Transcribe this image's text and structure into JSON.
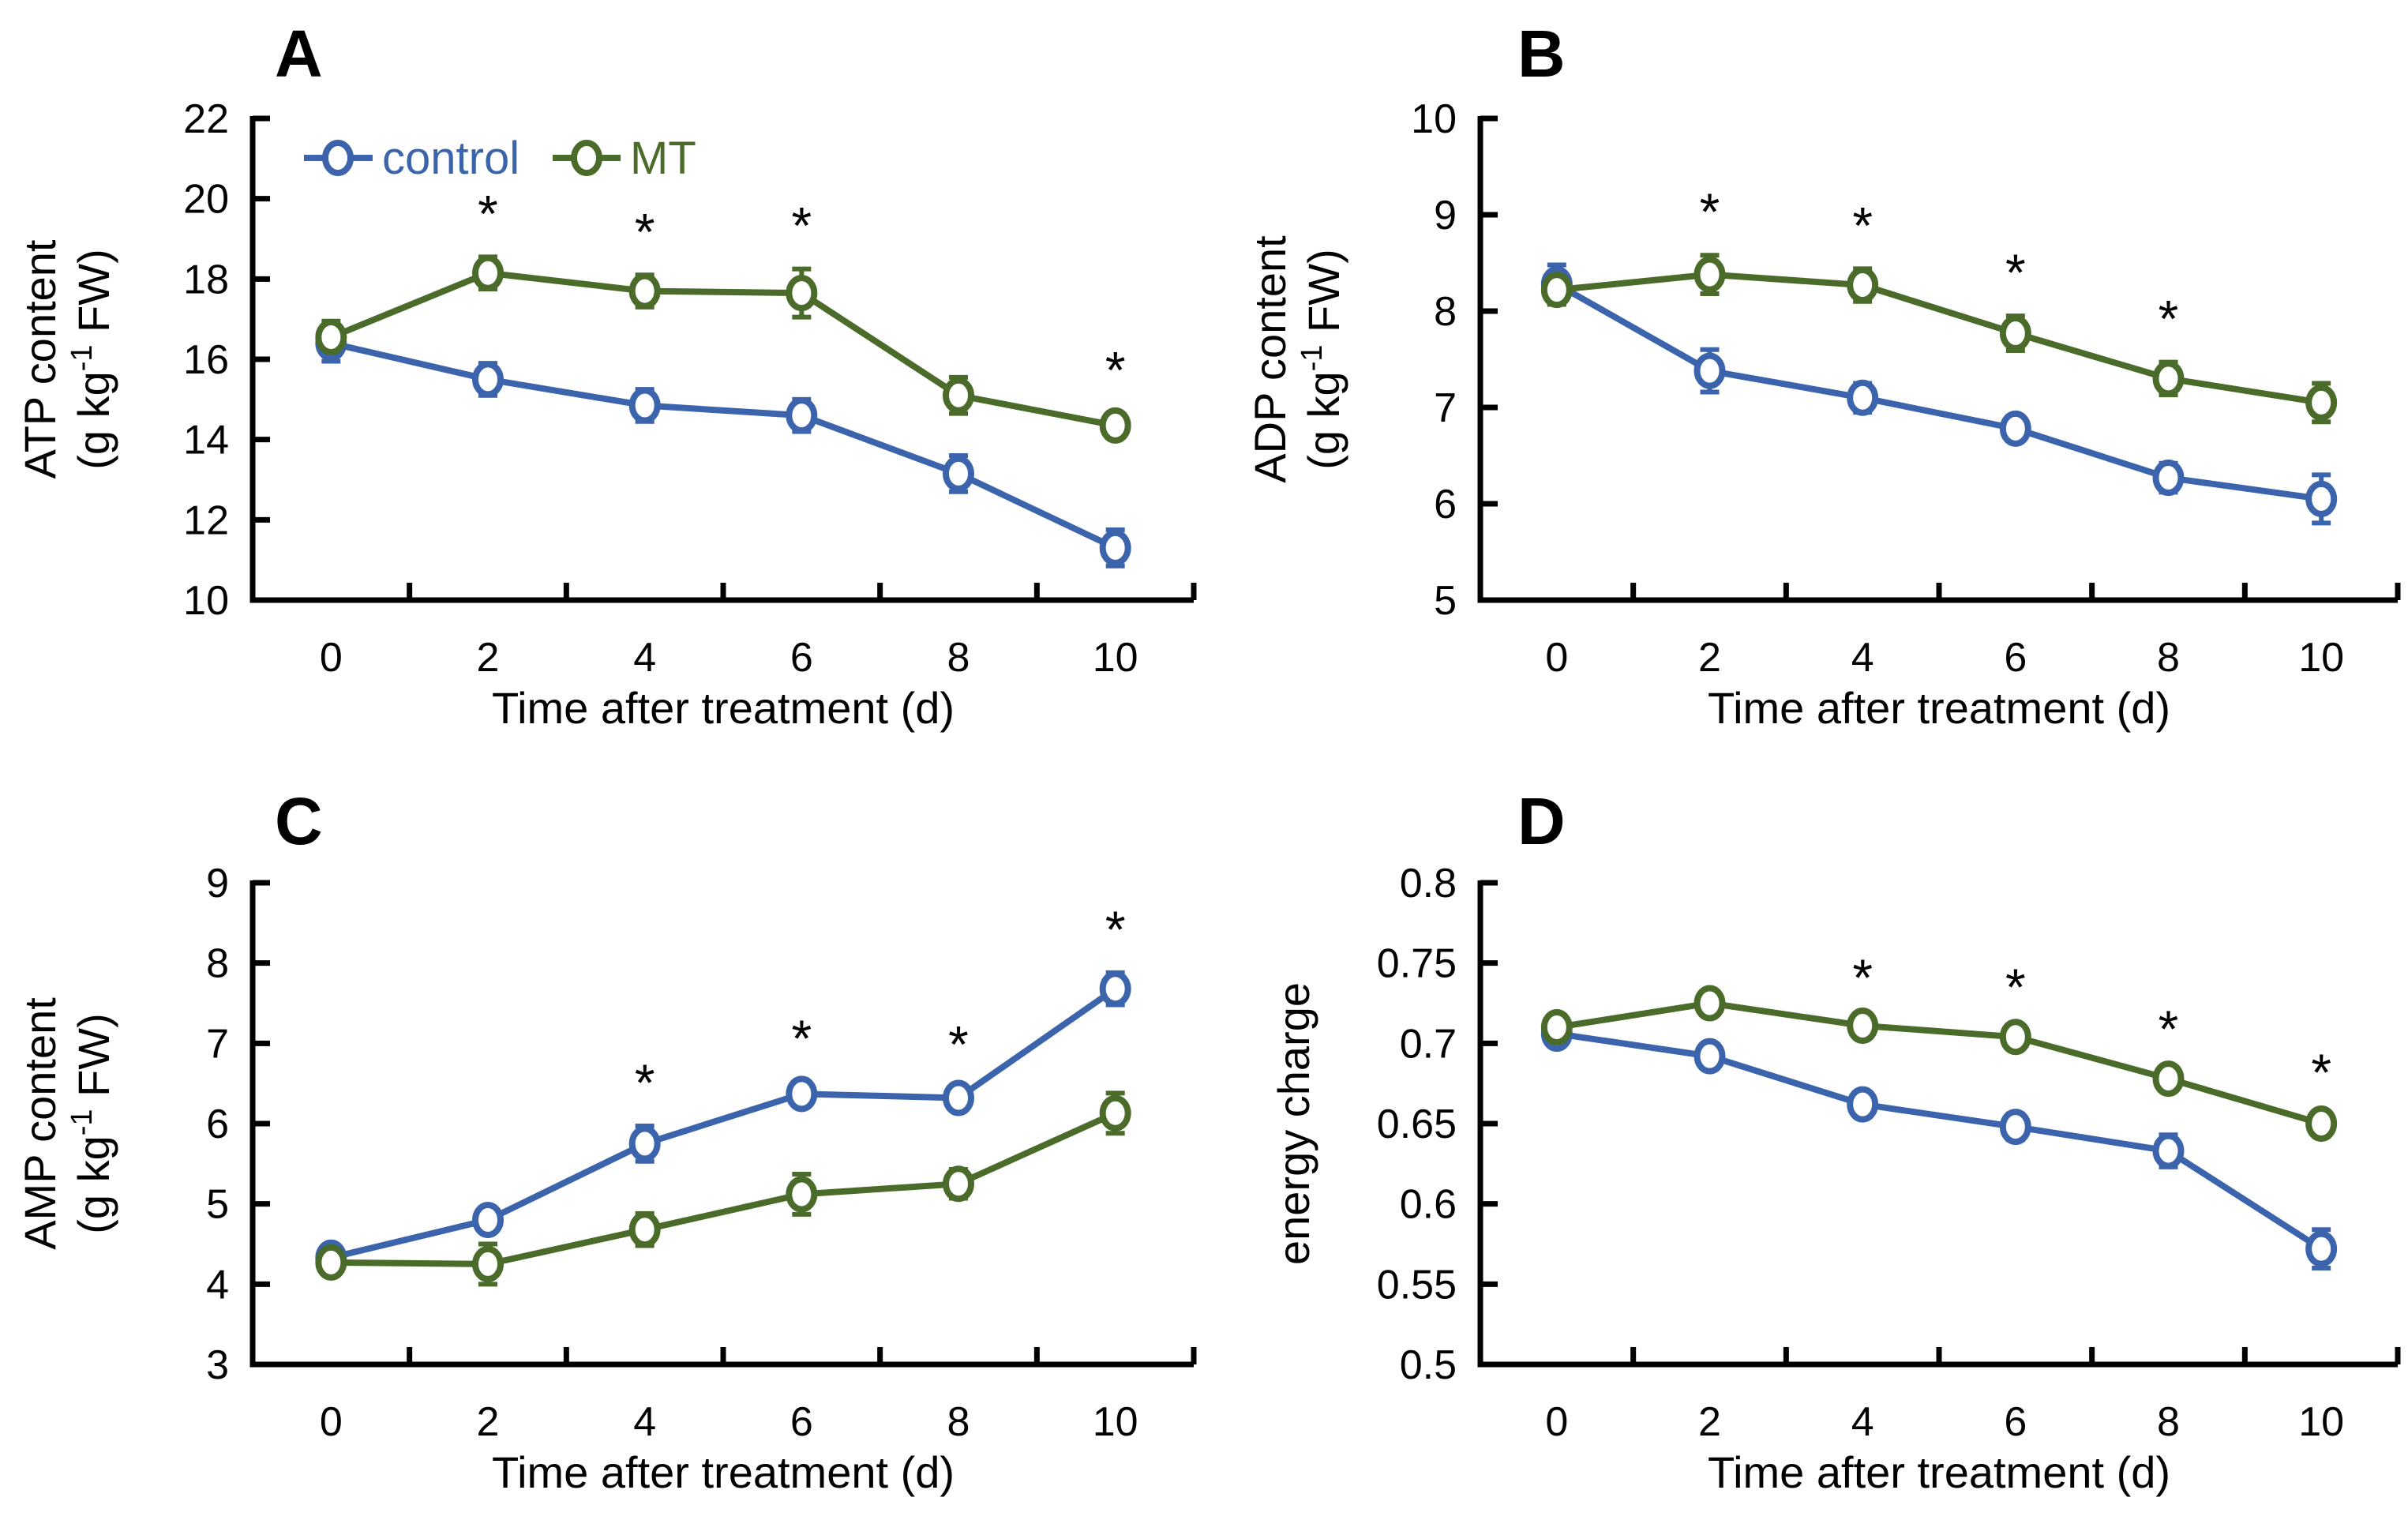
{
  "figure": {
    "background": "#ffffff",
    "axis_color": "#000000",
    "legend": {
      "items": [
        {
          "label": "control",
          "color": "#3B64AC"
        },
        {
          "label": "MT",
          "color": "#4A6B29"
        }
      ],
      "position": "top-inside-panel-A"
    }
  },
  "chart_data": [
    {
      "panel": "A",
      "type": "line",
      "xlabel": "Time after treatment (d)",
      "ylabel_lines": [
        {
          "pre": "ATP content"
        },
        {
          "pre": "(g kg",
          "sup": "-1",
          "post": " FW)"
        }
      ],
      "x": [
        "0",
        "2",
        "4",
        "6",
        "8",
        "10"
      ],
      "ylim": [
        10,
        22
      ],
      "yticks": [
        10,
        12,
        14,
        16,
        18,
        20,
        22
      ],
      "ytick_labels": [
        "10",
        "12",
        "14",
        "16",
        "18",
        "20",
        "22"
      ],
      "grid": false,
      "legend": true,
      "series": [
        {
          "name": "control",
          "color": "#3B64AC",
          "marker": "circle",
          "values": [
            16.4,
            15.5,
            14.85,
            14.6,
            13.15,
            11.3
          ],
          "errors": [
            0.45,
            0.4,
            0.4,
            0.4,
            0.45,
            0.45
          ]
        },
        {
          "name": "MT",
          "color": "#4A6B29",
          "marker": "circle",
          "values": [
            16.55,
            18.15,
            17.7,
            17.65,
            15.1,
            14.35
          ],
          "errors": [
            0.4,
            0.4,
            0.4,
            0.6,
            0.45,
            0.3
          ]
        }
      ],
      "asterisks": {
        "series": "MT",
        "x_indices": [
          1,
          2,
          3,
          5
        ],
        "symbol": "*"
      }
    },
    {
      "panel": "B",
      "type": "line",
      "xlabel": "Time after treatment (d)",
      "ylabel_lines": [
        {
          "pre": "ADP content"
        },
        {
          "pre": "(g kg",
          "sup": "-1",
          "post": " FW)"
        }
      ],
      "x": [
        "0",
        "2",
        "4",
        "6",
        "8",
        "10"
      ],
      "ylim": [
        5,
        10
      ],
      "yticks": [
        5,
        6,
        7,
        8,
        9,
        10
      ],
      "ytick_labels": [
        "5",
        "6",
        "7",
        "8",
        "9",
        "10"
      ],
      "grid": false,
      "legend": false,
      "series": [
        {
          "name": "control",
          "color": "#3B64AC",
          "marker": "circle",
          "values": [
            8.28,
            7.38,
            7.1,
            6.78,
            6.27,
            6.05
          ],
          "errors": [
            0.2,
            0.22,
            0.15,
            0.12,
            0.15,
            0.25
          ]
        },
        {
          "name": "MT",
          "color": "#4A6B29",
          "marker": "circle",
          "values": [
            8.22,
            8.38,
            8.27,
            7.77,
            7.3,
            7.05
          ],
          "errors": [
            0.15,
            0.2,
            0.17,
            0.18,
            0.17,
            0.2
          ]
        }
      ],
      "asterisks": {
        "series": "MT",
        "x_indices": [
          1,
          2,
          3,
          4
        ],
        "symbol": "*"
      }
    },
    {
      "panel": "C",
      "type": "line",
      "xlabel": "Time after treatment (d)",
      "ylabel_lines": [
        {
          "pre": "AMP content"
        },
        {
          "pre": "(g kg",
          "sup": "-1",
          "post": " FW)"
        }
      ],
      "x": [
        "0",
        "2",
        "4",
        "6",
        "8",
        "10"
      ],
      "ylim": [
        3,
        9
      ],
      "yticks": [
        3,
        4,
        5,
        6,
        7,
        8,
        9
      ],
      "ytick_labels": [
        "3",
        "4",
        "5",
        "6",
        "7",
        "8",
        "9"
      ],
      "grid": false,
      "legend": false,
      "series": [
        {
          "name": "control",
          "color": "#3B64AC",
          "marker": "circle",
          "values": [
            4.33,
            4.8,
            5.75,
            6.37,
            6.32,
            7.68
          ],
          "errors": [
            0.1,
            0.15,
            0.22,
            0.15,
            0.13,
            0.2
          ]
        },
        {
          "name": "MT",
          "color": "#4A6B29",
          "marker": "circle",
          "values": [
            4.27,
            4.25,
            4.68,
            5.12,
            5.25,
            6.13
          ],
          "errors": [
            0.15,
            0.25,
            0.2,
            0.25,
            0.18,
            0.25
          ]
        }
      ],
      "asterisks": {
        "series": "control",
        "x_indices": [
          2,
          3,
          4,
          5
        ],
        "symbol": "*"
      }
    },
    {
      "panel": "D",
      "type": "line",
      "xlabel": "Time after treatment (d)",
      "ylabel_lines": [
        {
          "pre": "energy charge"
        }
      ],
      "x": [
        "0",
        "2",
        "4",
        "6",
        "8",
        "10"
      ],
      "ylim": [
        0.5,
        0.8
      ],
      "yticks": [
        0.5,
        0.55,
        0.6,
        0.65,
        0.7,
        0.75,
        0.8
      ],
      "ytick_labels": [
        "0.5",
        "0.55",
        "0.6",
        "0.65",
        "0.7",
        "0.75",
        "0.8"
      ],
      "grid": false,
      "legend": false,
      "series": [
        {
          "name": "control",
          "color": "#3B64AC",
          "marker": "circle",
          "values": [
            0.706,
            0.692,
            0.662,
            0.648,
            0.633,
            0.572
          ],
          "errors": [
            0.005,
            0.006,
            0.004,
            0.008,
            0.01,
            0.012
          ]
        },
        {
          "name": "MT",
          "color": "#4A6B29",
          "marker": "circle",
          "values": [
            0.71,
            0.725,
            0.711,
            0.704,
            0.678,
            0.65
          ],
          "errors": [
            0.004,
            0.006,
            0.003,
            0.004,
            0.004,
            0.005
          ]
        }
      ],
      "asterisks": {
        "series": "MT",
        "x_indices": [
          2,
          3,
          4,
          5
        ],
        "symbol": "*"
      }
    }
  ]
}
